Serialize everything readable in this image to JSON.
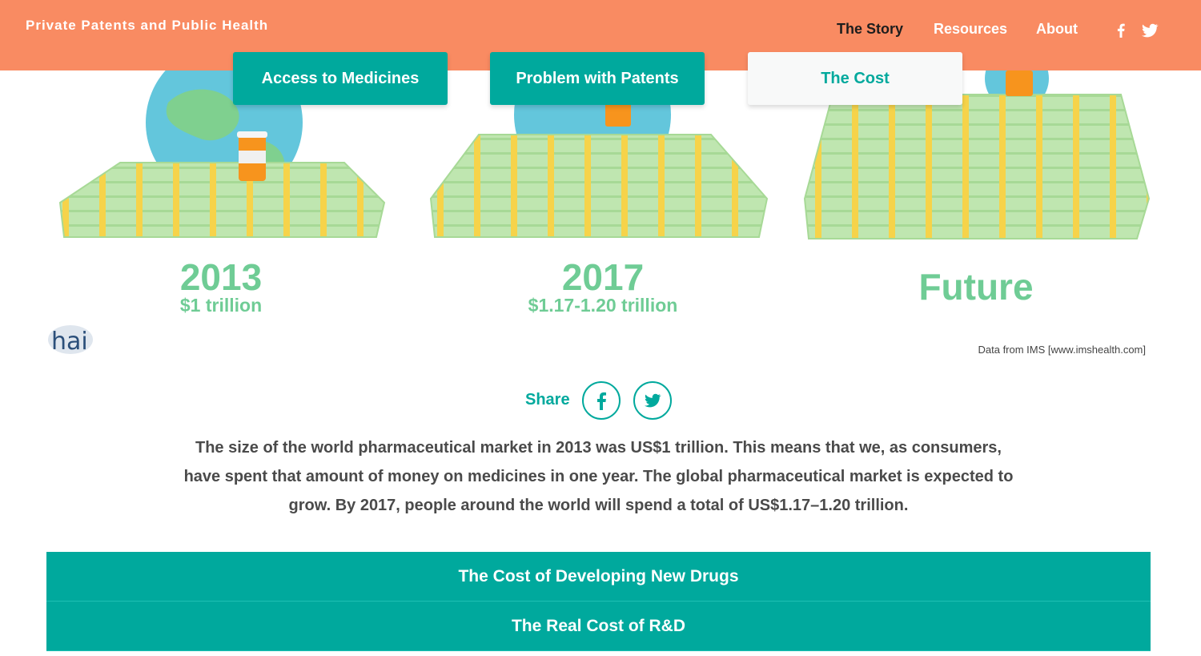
{
  "header": {
    "site_title": "Private Patents and Public Health",
    "nav": [
      {
        "label": "The Story",
        "active": true
      },
      {
        "label": "Resources",
        "active": false
      },
      {
        "label": "About",
        "active": false
      }
    ],
    "social_icons": [
      "facebook-icon",
      "twitter-icon"
    ],
    "background_color": "#f98b62"
  },
  "tabs": [
    {
      "label": "Access to Medicines",
      "selected": false
    },
    {
      "label": "Problem with Patents",
      "selected": false
    },
    {
      "label": "The Cost",
      "selected": true
    }
  ],
  "eras": [
    {
      "year": "2013",
      "amount": "$1 trillion"
    },
    {
      "year": "2017",
      "amount": "$1.17-1.20 trillion"
    },
    {
      "year": "Future",
      "amount": ""
    }
  ],
  "logo_text": "hai",
  "source_note": "Data from IMS [www.imshealth.com]",
  "share": {
    "label": "Share",
    "buttons": [
      "facebook-icon",
      "twitter-icon"
    ]
  },
  "body_text": "The size of the world pharmaceutical market in 2013 was US$1 trillion. This means that we, as consumers, have spent that amount of money on medicines in one year. The global pharmaceutical market is expected to grow. By 2017, people around the world will spend a total of US$1.17–1.20 trillion.",
  "accordion": [
    {
      "label": "The Cost of Developing New Drugs"
    },
    {
      "label": "The Real Cost of R&D"
    }
  ],
  "colors": {
    "accent": "#00a99d",
    "highlight": "#6fcc95",
    "money_green": "#bfe6b0",
    "money_band": "#f6d34a",
    "pill_orange": "#f7941d",
    "globe_blue": "#63c6dc",
    "globe_land": "#7fd08f"
  }
}
